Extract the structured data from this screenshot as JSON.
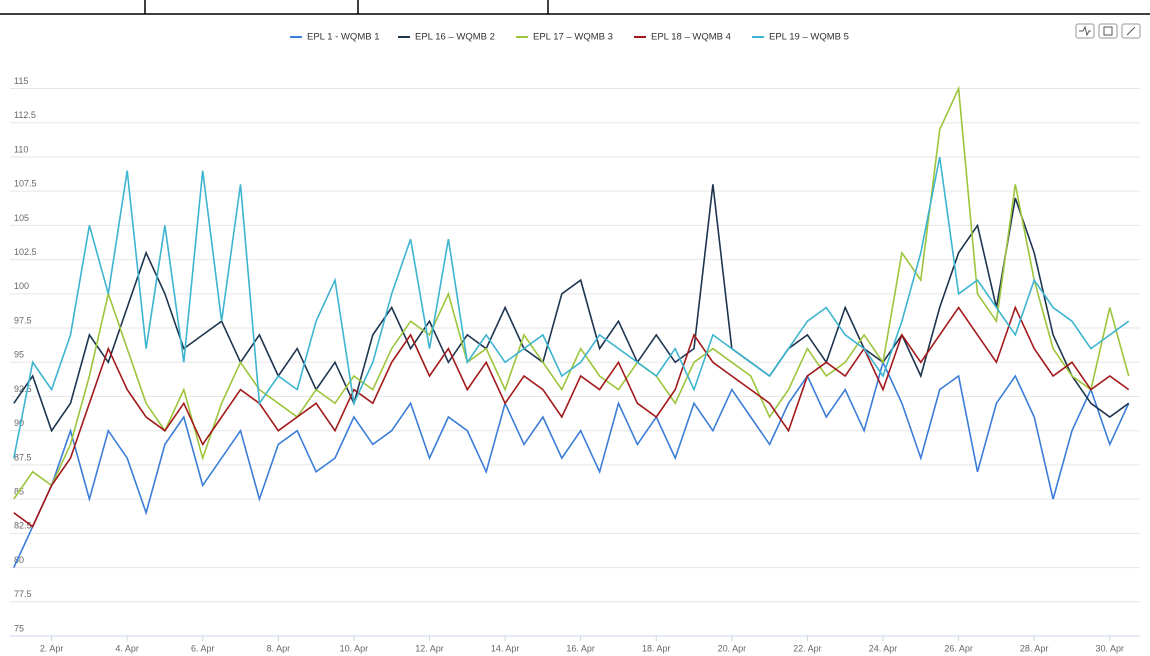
{
  "chart_data": {
    "type": "line",
    "x": [
      1,
      1.5,
      2,
      2.5,
      3,
      3.5,
      4,
      4.5,
      5,
      5.5,
      6,
      6.5,
      7,
      7.5,
      8,
      8.5,
      9,
      9.5,
      10,
      10.5,
      11,
      11.5,
      12,
      12.5,
      13,
      13.5,
      14,
      14.5,
      15,
      15.5,
      16,
      16.5,
      17,
      17.5,
      18,
      18.5,
      19,
      19.5,
      20,
      20.5,
      21,
      21.5,
      22,
      22.5,
      23,
      23.5,
      24,
      24.5,
      25,
      25.5,
      26,
      26.5,
      27,
      27.5,
      28,
      28.5,
      29,
      29.5,
      30,
      30.5
    ],
    "series": [
      {
        "name": "EPL 1 - WQMB 1",
        "color": "#3b7dd8",
        "values": [
          80,
          83,
          86,
          90,
          85,
          90,
          88,
          84,
          89,
          91,
          86,
          88,
          90,
          85,
          89,
          90,
          87,
          88,
          91,
          89,
          90,
          92,
          88,
          91,
          90,
          87,
          92,
          89,
          91,
          88,
          90,
          87,
          92,
          89,
          91,
          88,
          92,
          90,
          93,
          91,
          89,
          92,
          94,
          91,
          93,
          90,
          95,
          92,
          88,
          93,
          94,
          87,
          92,
          94,
          91,
          85,
          90,
          93,
          89,
          92
        ]
      },
      {
        "name": "EPL 16 – WQMB 2",
        "color": "#1e3550",
        "values": [
          92,
          94,
          90,
          92,
          97,
          95,
          99,
          103,
          100,
          96,
          97,
          98,
          95,
          97,
          94,
          96,
          93,
          95,
          92,
          97,
          99,
          96,
          98,
          95,
          97,
          96,
          99,
          96,
          95,
          100,
          101,
          96,
          98,
          95,
          97,
          95,
          96,
          108,
          96,
          95,
          94,
          96,
          97,
          95,
          99,
          96,
          95,
          97,
          94,
          99,
          103,
          105,
          99,
          107,
          103,
          97,
          94,
          92,
          91,
          92
        ]
      },
      {
        "name": "EPL 17 – WQMB 3",
        "color": "#9cc53c",
        "values": [
          85,
          87,
          86,
          89,
          94,
          100,
          96,
          92,
          90,
          93,
          88,
          92,
          95,
          93,
          92,
          91,
          93,
          92,
          94,
          93,
          96,
          98,
          97,
          100,
          95,
          96,
          93,
          97,
          95,
          93,
          96,
          94,
          93,
          95,
          94,
          92,
          95,
          96,
          95,
          94,
          91,
          93,
          96,
          94,
          95,
          97,
          95,
          103,
          101,
          112,
          115,
          100,
          98,
          108,
          101,
          96,
          94,
          93,
          99,
          94
        ]
      },
      {
        "name": "EPL 18 – WQMB 4",
        "color": "#a3191b",
        "values": [
          84,
          83,
          86,
          88,
          92,
          96,
          93,
          91,
          90,
          92,
          89,
          91,
          93,
          92,
          90,
          91,
          92,
          90,
          93,
          92,
          95,
          97,
          94,
          96,
          93,
          95,
          92,
          94,
          93,
          91,
          94,
          93,
          95,
          92,
          91,
          93,
          97,
          95,
          94,
          93,
          92,
          90,
          94,
          95,
          94,
          96,
          93,
          97,
          95,
          97,
          99,
          97,
          95,
          99,
          96,
          94,
          95,
          93,
          94,
          93
        ]
      },
      {
        "name": "EPL 19 – WQMB 5",
        "color": "#3db4d0",
        "values": [
          88,
          95,
          93,
          97,
          105,
          100,
          109,
          96,
          105,
          95,
          109,
          98,
          108,
          92,
          94,
          93,
          98,
          101,
          92,
          95,
          100,
          104,
          96,
          104,
          95,
          97,
          95,
          96,
          97,
          94,
          95,
          97,
          96,
          95,
          94,
          96,
          93,
          97,
          96,
          95,
          94,
          96,
          98,
          99,
          97,
          96,
          94,
          98,
          103,
          110,
          100,
          101,
          99,
          97,
          101,
          99,
          98,
          96,
          97,
          98
        ]
      }
    ],
    "xlim": [
      0.9,
      30.8
    ],
    "xticks": [
      {
        "value": 2,
        "label": "2. Apr"
      },
      {
        "value": 4,
        "label": "4. Apr"
      },
      {
        "value": 6,
        "label": "6. Apr"
      },
      {
        "value": 8,
        "label": "8. Apr"
      },
      {
        "value": 10,
        "label": "10. Apr"
      },
      {
        "value": 12,
        "label": "12. Apr"
      },
      {
        "value": 14,
        "label": "14. Apr"
      },
      {
        "value": 16,
        "label": "16. Apr"
      },
      {
        "value": 18,
        "label": "18. Apr"
      },
      {
        "value": 20,
        "label": "20. Apr"
      },
      {
        "value": 22,
        "label": "22. Apr"
      },
      {
        "value": 24,
        "label": "24. Apr"
      },
      {
        "value": 26,
        "label": "26. Apr"
      },
      {
        "value": 28,
        "label": "28. Apr"
      },
      {
        "value": 30,
        "label": "30. Apr"
      }
    ],
    "ylim": [
      75,
      116.5
    ],
    "yticks": [
      75,
      77.5,
      80,
      82.5,
      85,
      87.5,
      90,
      92.5,
      95,
      97.5,
      100,
      102.5,
      105,
      107.5,
      110,
      112.5,
      115
    ],
    "grid": true,
    "legend": "top"
  }
}
